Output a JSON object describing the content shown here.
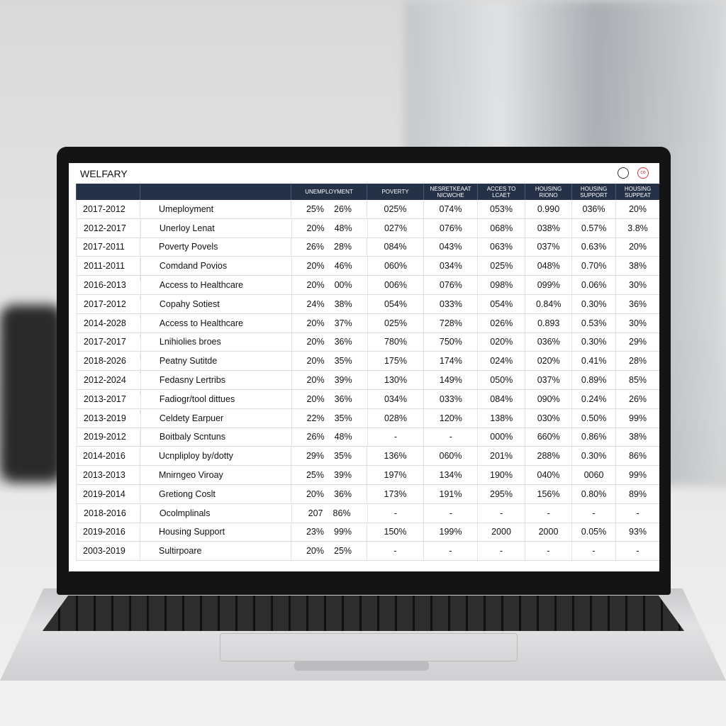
{
  "title": "WELFARY",
  "icons": [
    "circle-icon",
    "record-icon"
  ],
  "headers": [
    "",
    "",
    "UNEMPLOYMENT",
    "POVERTY",
    "NESRETKEAAT NICWCHE",
    "ACCES TO LCAET",
    "HOUSING RIONO",
    "HOUSING SUPPORT",
    "HOUSING SUPPEAT"
  ],
  "colors": {
    "header_bg": "#243146",
    "pink": "#f1c4c8",
    "orange": "#f6bb4a",
    "teal": "#1d8a72",
    "green": "#8cc85a",
    "red": "#cc2b2b",
    "amber": "#eea21c",
    "yellow": "#f4d45a",
    "blue": "#2c4b8f",
    "lightteal": "#bfe0d4",
    "lime": "#7cc242"
  },
  "rows": [
    {
      "years": "2017-2012",
      "name": "Umeployment",
      "u1": "25%",
      "u2": "26%",
      "v": [
        "025%",
        "074%",
        "053%",
        "0.990",
        "036%",
        "20%"
      ],
      "hl": null
    },
    {
      "years": "2012-2017",
      "name": "Unerloy Lenat",
      "u1": "20%",
      "u2": "48%",
      "v": [
        "027%",
        "076%",
        "068%",
        "038%",
        "0.57%",
        "3.8%"
      ],
      "hl": "pink"
    },
    {
      "years": "2017-2011",
      "name": "Poverty Povels",
      "u1": "26%",
      "u2": "28%",
      "v": [
        "084%",
        "043%",
        "063%",
        "037%",
        "0.63%",
        "20%"
      ],
      "hl": null
    },
    {
      "years": "2011-2011",
      "name": "Comdand Povios",
      "u1": "20%",
      "u2": "46%",
      "v": [
        "060%",
        "034%",
        "025%",
        "048%",
        "0.70%",
        "38%"
      ],
      "hl": "orange"
    },
    {
      "years": "2016-2013",
      "name": "Access to Healthcare",
      "u1": "20%",
      "u2": "00%",
      "v": [
        "006%",
        "076%",
        "098%",
        "099%",
        "0.06%",
        "30%"
      ],
      "hl": "teal"
    },
    {
      "years": "2017-2012",
      "name": "Copahy Sotiest",
      "u1": "24%",
      "u2": "38%",
      "v": [
        "054%",
        "033%",
        "054%",
        "0.84%",
        "0.30%",
        "36%"
      ],
      "hl": "green"
    },
    {
      "years": "2014-2028",
      "name": "Access to Healthcare",
      "u1": "20%",
      "u2": "37%",
      "v": [
        "025%",
        "728%",
        "026%",
        "0.893",
        "0.53%",
        "30%"
      ],
      "hl": "green"
    },
    {
      "years": "2017-2017",
      "name": "Lnihiolies broes",
      "u1": "20%",
      "u2": "36%",
      "v": [
        "780%",
        "750%",
        "020%",
        "036%",
        "0.30%",
        "29%"
      ],
      "hl": "red"
    },
    {
      "years": "2018-2026",
      "name": "Peatny Sutitde",
      "u1": "20%",
      "u2": "35%",
      "v": [
        "175%",
        "174%",
        "024%",
        "020%",
        "0.41%",
        "28%"
      ],
      "hl": "amber"
    },
    {
      "years": "2012-2024",
      "name": "Fedasny Lertribs",
      "u1": "20%",
      "u2": "39%",
      "v": [
        "130%",
        "149%",
        "050%",
        "037%",
        "0.89%",
        "85%"
      ],
      "hl": "yellow"
    },
    {
      "years": "2013-2017",
      "name": "Fadiogr/tool dittues",
      "u1": "20%",
      "u2": "36%",
      "v": [
        "034%",
        "033%",
        "084%",
        "090%",
        "0.24%",
        "26%"
      ],
      "hl": "blue"
    },
    {
      "years": "2013-2019",
      "name": "Celdety Earpuer",
      "u1": "22%",
      "u2": "35%",
      "v": [
        "028%",
        "120%",
        "138%",
        "030%",
        "0.50%",
        "99%"
      ],
      "hl": "green"
    },
    {
      "years": "2019-2012",
      "name": "Boitbaly Scntuns",
      "u1": "26%",
      "u2": "48%",
      "v": [
        "-",
        "-",
        "000%",
        "660%",
        "0.86%",
        "38%"
      ],
      "hl": "lightteal"
    },
    {
      "years": "2014-2016",
      "name": "Ucnpliploy by/dotty",
      "u1": "29%",
      "u2": "35%",
      "v": [
        "136%",
        "060%",
        "201%",
        "288%",
        "0.30%",
        "86%"
      ],
      "hl": null
    },
    {
      "years": "2013-2013",
      "name": "Mnirngeo Viroay",
      "u1": "25%",
      "u2": "39%",
      "v": [
        "197%",
        "134%",
        "190%",
        "040%",
        "0060",
        "99%"
      ],
      "hl": null
    },
    {
      "years": "2019-2014",
      "name": "Gretiong Coslt",
      "u1": "20%",
      "u2": "36%",
      "v": [
        "173%",
        "191%",
        "295%",
        "156%",
        "0.80%",
        "89%"
      ],
      "hl": null
    },
    {
      "years": "2018-2016",
      "name": "Ocolmplinals",
      "u1": "207",
      "u2": "86%",
      "v": [
        "-",
        "-",
        "-",
        "-",
        "-",
        "-"
      ],
      "hl": "lime"
    },
    {
      "years": "2019-2016",
      "name": "Housing Support",
      "u1": "23%",
      "u2": "99%",
      "v": [
        "150%",
        "199%",
        "2000",
        "2000",
        "0.05%",
        "93%"
      ],
      "hl": null
    },
    {
      "years": "2003-2019",
      "name": "Sultirpoare",
      "u1": "20%",
      "u2": "25%",
      "v": [
        "-",
        "-",
        "-",
        "-",
        "-",
        "-"
      ],
      "hl": null
    }
  ]
}
